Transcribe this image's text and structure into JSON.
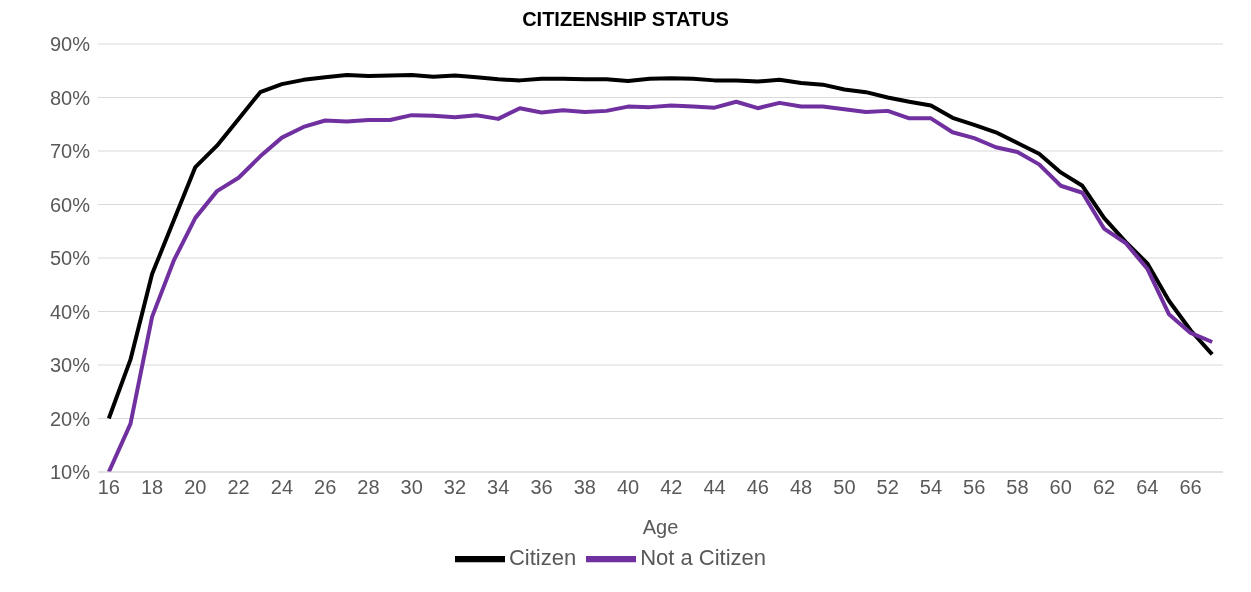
{
  "chart_data": {
    "type": "line",
    "title": "CITIZENSHIP STATUS",
    "xlabel": "Age",
    "x": [
      16,
      17,
      18,
      19,
      20,
      21,
      22,
      23,
      24,
      25,
      26,
      27,
      28,
      29,
      30,
      31,
      32,
      33,
      34,
      35,
      36,
      37,
      38,
      39,
      40,
      41,
      42,
      43,
      44,
      45,
      46,
      47,
      48,
      49,
      50,
      51,
      52,
      53,
      54,
      55,
      56,
      57,
      58,
      59,
      60,
      61,
      62,
      63,
      64,
      65,
      66,
      67
    ],
    "xlim": [
      15.5,
      67.5
    ],
    "xticks": [
      16,
      18,
      20,
      22,
      24,
      26,
      28,
      30,
      32,
      34,
      36,
      38,
      40,
      42,
      44,
      46,
      48,
      50,
      52,
      54,
      56,
      58,
      60,
      62,
      64,
      66
    ],
    "ylim": [
      10,
      90
    ],
    "yticks": [
      {
        "value": 10,
        "label": "10%"
      },
      {
        "value": 20,
        "label": "20%"
      },
      {
        "value": 30,
        "label": "30%"
      },
      {
        "value": 40,
        "label": "40%"
      },
      {
        "value": 50,
        "label": "50%"
      },
      {
        "value": 60,
        "label": "60%"
      },
      {
        "value": 70,
        "label": "70%"
      },
      {
        "value": 80,
        "label": "80%"
      },
      {
        "value": 90,
        "label": "90%"
      }
    ],
    "grid": "y",
    "legend": "bottom",
    "marker": "none",
    "line_style": "solid",
    "series": [
      {
        "name": "Citizen",
        "color": "#000000",
        "values": [
          20,
          31,
          47,
          57,
          67,
          71,
          76,
          81,
          82.5,
          83.3,
          83.8,
          84.2,
          84,
          84.1,
          84.2,
          83.9,
          84.1,
          83.8,
          83.4,
          83.2,
          83.5,
          83.5,
          83.4,
          83.4,
          83.1,
          83.5,
          83.6,
          83.5,
          83.2,
          83.2,
          83,
          83.3,
          82.7,
          82.4,
          81.5,
          81,
          80,
          79.2,
          78.5,
          76.2,
          74.9,
          73.5,
          71.5,
          69.5,
          66,
          63.5,
          57.5,
          53,
          49,
          42,
          36.5,
          32
        ]
      },
      {
        "name": "Not a Citizen",
        "color": "#7030a0",
        "values": [
          10,
          19,
          39,
          49.5,
          57.5,
          62.5,
          65,
          69,
          72.5,
          74.5,
          75.7,
          75.5,
          75.8,
          75.8,
          76.7,
          76.6,
          76.3,
          76.7,
          76,
          78,
          77.2,
          77.6,
          77.3,
          77.5,
          78.3,
          78.2,
          78.5,
          78.3,
          78.1,
          79.2,
          78,
          79,
          78.3,
          78.3,
          77.8,
          77.3,
          77.5,
          76.1,
          76.1,
          73.5,
          72.4,
          70.7,
          69.8,
          67.5,
          63.5,
          62.2,
          55.5,
          52.8,
          48,
          39.5,
          36,
          34.3
        ]
      }
    ]
  }
}
